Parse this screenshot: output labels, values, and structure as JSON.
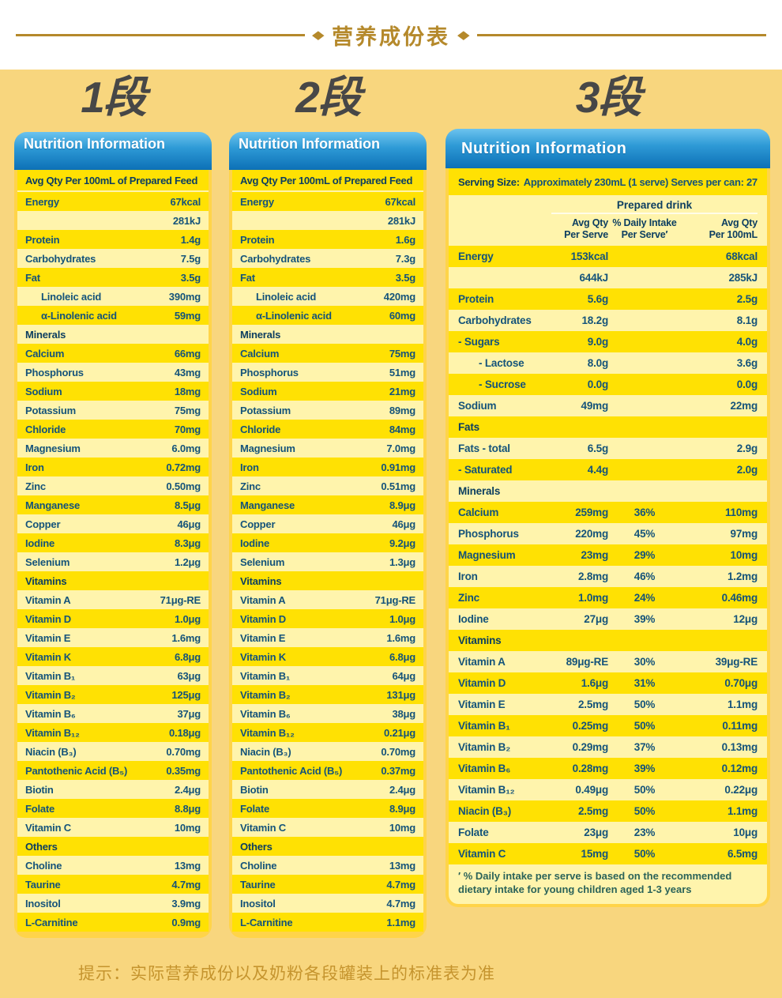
{
  "page": {
    "title": "营养成份表",
    "bottom_note": "提示：实际营养成份以及奶粉各段罐装上的标准表为准",
    "colors": {
      "gold": "#B5892B",
      "page_background": "#F8D67E",
      "card_background": "#FFD449",
      "row_deep": "#FFE103",
      "row_pale": "#FFF4AC",
      "header_blue_top": "#66C0EC",
      "header_blue_bottom": "#0C70B6",
      "text_blue": "#14537A",
      "section_text": "#0C3E60",
      "footnote_text": "#2B6359",
      "note_gold": "#C5942E",
      "stage_heading": "#474747"
    }
  },
  "stages": [
    {
      "heading": "1段",
      "table_title": "Nutrition Information",
      "subheader": "Avg Qty Per 100mL of Prepared Feed",
      "rows": [
        {
          "label": "Energy",
          "value": "67kcal"
        },
        {
          "label": "",
          "value": "281kJ"
        },
        {
          "label": "Protein",
          "value": "1.4g"
        },
        {
          "label": "Carbohydrates",
          "value": "7.5g"
        },
        {
          "label": "Fat",
          "value": "3.5g"
        },
        {
          "label": "Linoleic acid",
          "value": "390mg",
          "indent": 1
        },
        {
          "label": "α-Linolenic acid",
          "value": "59mg",
          "indent": 1
        },
        {
          "label": "Minerals",
          "value": "",
          "section": true
        },
        {
          "label": "Calcium",
          "value": "66mg"
        },
        {
          "label": "Phosphorus",
          "value": "43mg"
        },
        {
          "label": "Sodium",
          "value": "18mg"
        },
        {
          "label": "Potassium",
          "value": "75mg"
        },
        {
          "label": "Chloride",
          "value": "70mg"
        },
        {
          "label": "Magnesium",
          "value": "6.0mg"
        },
        {
          "label": "Iron",
          "value": "0.72mg"
        },
        {
          "label": "Zinc",
          "value": "0.50mg"
        },
        {
          "label": "Manganese",
          "value": "8.5μg"
        },
        {
          "label": "Copper",
          "value": "46μg"
        },
        {
          "label": "Iodine",
          "value": "8.3μg"
        },
        {
          "label": "Selenium",
          "value": "1.2μg"
        },
        {
          "label": "Vitamins",
          "value": "",
          "section": true
        },
        {
          "label": "Vitamin A",
          "value": "71μg-RE"
        },
        {
          "label": "Vitamin D",
          "value": "1.0μg"
        },
        {
          "label": "Vitamin E",
          "value": "1.6mg"
        },
        {
          "label": "Vitamin K",
          "value": "6.8μg"
        },
        {
          "label": "Vitamin B₁",
          "value": "63μg"
        },
        {
          "label": "Vitamin B₂",
          "value": "125μg"
        },
        {
          "label": "Vitamin B₆",
          "value": "37μg"
        },
        {
          "label": "Vitamin B₁₂",
          "value": "0.18μg"
        },
        {
          "label": "Niacin (B₃)",
          "value": "0.70mg"
        },
        {
          "label": "Pantothenic Acid (B₅)",
          "value": "0.35mg"
        },
        {
          "label": "Biotin",
          "value": "2.4μg"
        },
        {
          "label": "Folate",
          "value": "8.8μg"
        },
        {
          "label": "Vitamin C",
          "value": "10mg"
        },
        {
          "label": "Others",
          "value": "",
          "section": true
        },
        {
          "label": "Choline",
          "value": "13mg"
        },
        {
          "label": "Taurine",
          "value": "4.7mg"
        },
        {
          "label": "Inositol",
          "value": "3.9mg"
        },
        {
          "label": "L-Carnitine",
          "value": "0.9mg"
        }
      ]
    },
    {
      "heading": "2段",
      "table_title": "Nutrition Information",
      "subheader": "Avg Qty Per 100mL of Prepared Feed",
      "rows": [
        {
          "label": "Energy",
          "value": "67kcal"
        },
        {
          "label": "",
          "value": "281kJ"
        },
        {
          "label": "Protein",
          "value": "1.6g"
        },
        {
          "label": "Carbohydrates",
          "value": "7.3g"
        },
        {
          "label": "Fat",
          "value": "3.5g"
        },
        {
          "label": "Linoleic acid",
          "value": "420mg",
          "indent": 1
        },
        {
          "label": "α-Linolenic acid",
          "value": "60mg",
          "indent": 1
        },
        {
          "label": "Minerals",
          "value": "",
          "section": true
        },
        {
          "label": "Calcium",
          "value": "75mg"
        },
        {
          "label": "Phosphorus",
          "value": "51mg"
        },
        {
          "label": "Sodium",
          "value": "21mg"
        },
        {
          "label": "Potassium",
          "value": "89mg"
        },
        {
          "label": "Chloride",
          "value": "84mg"
        },
        {
          "label": "Magnesium",
          "value": "7.0mg"
        },
        {
          "label": "Iron",
          "value": "0.91mg"
        },
        {
          "label": "Zinc",
          "value": "0.51mg"
        },
        {
          "label": "Manganese",
          "value": "8.9μg"
        },
        {
          "label": "Copper",
          "value": "46μg"
        },
        {
          "label": "Iodine",
          "value": "9.2μg"
        },
        {
          "label": "Selenium",
          "value": "1.3μg"
        },
        {
          "label": "Vitamins",
          "value": "",
          "section": true
        },
        {
          "label": "Vitamin A",
          "value": "71μg-RE"
        },
        {
          "label": "Vitamin D",
          "value": "1.0μg"
        },
        {
          "label": "Vitamin E",
          "value": "1.6mg"
        },
        {
          "label": "Vitamin K",
          "value": "6.8μg"
        },
        {
          "label": "Vitamin B₁",
          "value": "64μg"
        },
        {
          "label": "Vitamin B₂",
          "value": "131μg"
        },
        {
          "label": "Vitamin B₆",
          "value": "38μg"
        },
        {
          "label": "Vitamin B₁₂",
          "value": "0.21μg"
        },
        {
          "label": "Niacin (B₃)",
          "value": "0.70mg"
        },
        {
          "label": "Pantothenic Acid (B₅)",
          "value": "0.37mg"
        },
        {
          "label": "Biotin",
          "value": "2.4μg"
        },
        {
          "label": "Folate",
          "value": "8.9μg"
        },
        {
          "label": "Vitamin C",
          "value": "10mg"
        },
        {
          "label": "Others",
          "value": "",
          "section": true
        },
        {
          "label": "Choline",
          "value": "13mg"
        },
        {
          "label": "Taurine",
          "value": "4.7mg"
        },
        {
          "label": "Inositol",
          "value": "4.7mg"
        },
        {
          "label": "L-Carnitine",
          "value": "1.1mg"
        }
      ]
    },
    {
      "heading": "3段",
      "table_title": "Nutrition Information",
      "serving_label": "Serving Size:",
      "serving_text": "Approximately 230mL (1 serve) Serves per can: 27",
      "group_label": "Prepared drink",
      "headers": [
        {
          "l1": "Avg Qty",
          "l2": "Per Serve"
        },
        {
          "l1": "% Daily Intake",
          "l2": "Per Serve′"
        },
        {
          "l1": "Avg Qty",
          "l2": "Per 100mL"
        }
      ],
      "rows": [
        {
          "label": "Energy",
          "per_serve": "153kcal",
          "daily_intake": "",
          "per_100ml": "68kcal"
        },
        {
          "label": "",
          "per_serve": "644kJ",
          "daily_intake": "",
          "per_100ml": "285kJ"
        },
        {
          "label": "Protein",
          "per_serve": "5.6g",
          "daily_intake": "",
          "per_100ml": "2.5g"
        },
        {
          "label": "Carbohydrates",
          "per_serve": "18.2g",
          "daily_intake": "",
          "per_100ml": "8.1g"
        },
        {
          "label": "- Sugars",
          "per_serve": "9.0g",
          "daily_intake": "",
          "per_100ml": "4.0g"
        },
        {
          "label": "- Lactose",
          "per_serve": "8.0g",
          "daily_intake": "",
          "per_100ml": "3.6g",
          "indent": 1
        },
        {
          "label": "- Sucrose",
          "per_serve": "0.0g",
          "daily_intake": "",
          "per_100ml": "0.0g",
          "indent": 1
        },
        {
          "label": "Sodium",
          "per_serve": "49mg",
          "daily_intake": "",
          "per_100ml": "22mg"
        },
        {
          "label": "Fats",
          "section": true
        },
        {
          "label": "Fats - total",
          "per_serve": "6.5g",
          "daily_intake": "",
          "per_100ml": "2.9g"
        },
        {
          "label": "- Saturated",
          "per_serve": "4.4g",
          "daily_intake": "",
          "per_100ml": "2.0g"
        },
        {
          "label": "Minerals",
          "section": true
        },
        {
          "label": "Calcium",
          "per_serve": "259mg",
          "daily_intake": "36%",
          "per_100ml": "110mg"
        },
        {
          "label": "Phosphorus",
          "per_serve": "220mg",
          "daily_intake": "45%",
          "per_100ml": "97mg"
        },
        {
          "label": "Magnesium",
          "per_serve": "23mg",
          "daily_intake": "29%",
          "per_100ml": "10mg"
        },
        {
          "label": "Iron",
          "per_serve": "2.8mg",
          "daily_intake": "46%",
          "per_100ml": "1.2mg"
        },
        {
          "label": "Zinc",
          "per_serve": "1.0mg",
          "daily_intake": "24%",
          "per_100ml": "0.46mg"
        },
        {
          "label": "Iodine",
          "per_serve": "27μg",
          "daily_intake": "39%",
          "per_100ml": "12μg"
        },
        {
          "label": "Vitamins",
          "section": true
        },
        {
          "label": "Vitamin A",
          "per_serve": "89μg-RE",
          "daily_intake": "30%",
          "per_100ml": "39μg-RE"
        },
        {
          "label": "Vitamin D",
          "per_serve": "1.6μg",
          "daily_intake": "31%",
          "per_100ml": "0.70μg"
        },
        {
          "label": "Vitamin E",
          "per_serve": "2.5mg",
          "daily_intake": "50%",
          "per_100ml": "1.1mg"
        },
        {
          "label": "Vitamin B₁",
          "per_serve": "0.25mg",
          "daily_intake": "50%",
          "per_100ml": "0.11mg"
        },
        {
          "label": "Vitamin B₂",
          "per_serve": "0.29mg",
          "daily_intake": "37%",
          "per_100ml": "0.13mg"
        },
        {
          "label": "Vitamin B₆",
          "per_serve": "0.28mg",
          "daily_intake": "39%",
          "per_100ml": "0.12mg"
        },
        {
          "label": "Vitamin B₁₂",
          "per_serve": "0.49μg",
          "daily_intake": "50%",
          "per_100ml": "0.22μg"
        },
        {
          "label": "Niacin (B₃)",
          "per_serve": "2.5mg",
          "daily_intake": "50%",
          "per_100ml": "1.1mg"
        },
        {
          "label": "Folate",
          "per_serve": "23μg",
          "daily_intake": "23%",
          "per_100ml": "10μg"
        },
        {
          "label": "Vitamin C",
          "per_serve": "15mg",
          "daily_intake": "50%",
          "per_100ml": "6.5mg"
        }
      ],
      "footnote": "′ % Daily intake per serve is based on the recommended dietary intake for young children aged 1-3 years"
    }
  ]
}
